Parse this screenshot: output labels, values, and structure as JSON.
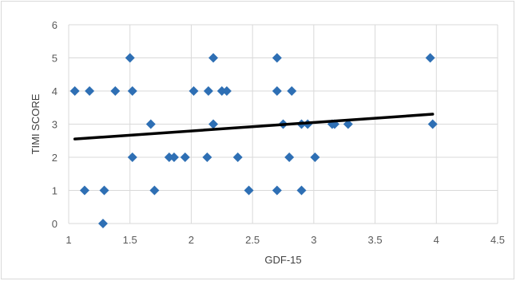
{
  "chart_data": {
    "type": "scatter",
    "title": "",
    "xlabel": "GDF-15",
    "ylabel": "TIMI SCORE",
    "xlim": [
      1,
      4.5
    ],
    "ylim": [
      0,
      6
    ],
    "x_ticks": [
      "1",
      "1.5",
      "2",
      "2.5",
      "3",
      "3.5",
      "4",
      "4.5"
    ],
    "y_ticks": [
      "0",
      "1",
      "2",
      "3",
      "4",
      "5",
      "6"
    ],
    "grid": true,
    "legend": "none",
    "marker_color": "#2e6fb4",
    "trendline_color": "#000000",
    "points": [
      {
        "x": 1.05,
        "y": 4
      },
      {
        "x": 1.13,
        "y": 1
      },
      {
        "x": 1.17,
        "y": 4
      },
      {
        "x": 1.28,
        "y": 0
      },
      {
        "x": 1.29,
        "y": 1
      },
      {
        "x": 1.38,
        "y": 4
      },
      {
        "x": 1.5,
        "y": 5
      },
      {
        "x": 1.52,
        "y": 4
      },
      {
        "x": 1.52,
        "y": 2
      },
      {
        "x": 1.67,
        "y": 3
      },
      {
        "x": 1.7,
        "y": 1
      },
      {
        "x": 1.82,
        "y": 2
      },
      {
        "x": 1.86,
        "y": 2
      },
      {
        "x": 1.95,
        "y": 2
      },
      {
        "x": 2.02,
        "y": 4
      },
      {
        "x": 2.13,
        "y": 2
      },
      {
        "x": 2.14,
        "y": 4
      },
      {
        "x": 2.18,
        "y": 5
      },
      {
        "x": 2.18,
        "y": 3
      },
      {
        "x": 2.25,
        "y": 4
      },
      {
        "x": 2.29,
        "y": 4
      },
      {
        "x": 2.38,
        "y": 2
      },
      {
        "x": 2.47,
        "y": 1
      },
      {
        "x": 2.7,
        "y": 5
      },
      {
        "x": 2.7,
        "y": 4
      },
      {
        "x": 2.7,
        "y": 1
      },
      {
        "x": 2.75,
        "y": 3
      },
      {
        "x": 2.8,
        "y": 2
      },
      {
        "x": 2.82,
        "y": 4
      },
      {
        "x": 2.9,
        "y": 3
      },
      {
        "x": 2.9,
        "y": 1
      },
      {
        "x": 2.95,
        "y": 3
      },
      {
        "x": 3.01,
        "y": 2
      },
      {
        "x": 3.15,
        "y": 3
      },
      {
        "x": 3.17,
        "y": 3
      },
      {
        "x": 3.28,
        "y": 3
      },
      {
        "x": 3.95,
        "y": 5
      },
      {
        "x": 3.97,
        "y": 3
      }
    ],
    "trendline": {
      "x": [
        1.05,
        3.97
      ],
      "y": [
        2.55,
        3.3
      ]
    }
  }
}
